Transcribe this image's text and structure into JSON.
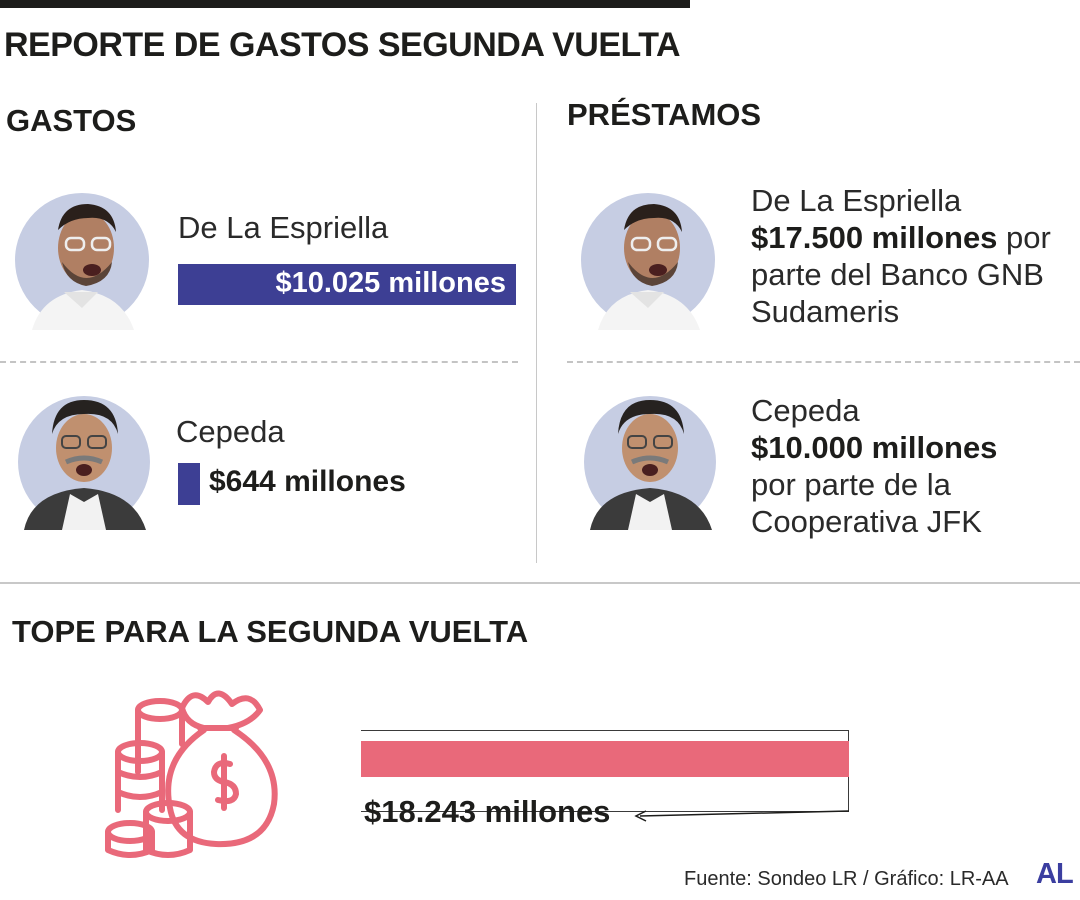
{
  "title": "REPORTE DE GASTOS SEGUNDA VUELTA",
  "gastos": {
    "heading": "GASTOS",
    "candidates": [
      {
        "name": "De La Espriella",
        "amount_label": "$10.025 millones",
        "value": 10025
      },
      {
        "name": "Cepeda",
        "amount_label": "$644 millones",
        "value": 644
      }
    ],
    "bar_color": "#3d3f94"
  },
  "prestamos": {
    "heading": "PRÉSTAMOS",
    "items": [
      {
        "name": "De La Espriella",
        "amount": "$17.500 millones",
        "line1_rest": " por",
        "line2": "parte del Banco GNB",
        "line3": "Sudameris"
      },
      {
        "name": "Cepeda",
        "amount": "$10.000 millones",
        "line2": "por parte de la",
        "line3": "Cooperativa JFK"
      }
    ]
  },
  "tope": {
    "heading": "TOPE PARA LA SEGUNDA VUELTA",
    "amount_label": "$18.243 millones",
    "value": 18243,
    "bar_color": "#e9697a",
    "icon": "money-bag-coins-icon"
  },
  "chart_data": {
    "type": "bar",
    "categories": [
      "De La Espriella",
      "Cepeda"
    ],
    "values": [
      10025,
      644
    ],
    "title": "",
    "ylabel": "",
    "xlabel": ""
  },
  "footer": {
    "source": "Fuente: Sondeo LR / Gráfico: LR-AA",
    "logo": "AL"
  }
}
